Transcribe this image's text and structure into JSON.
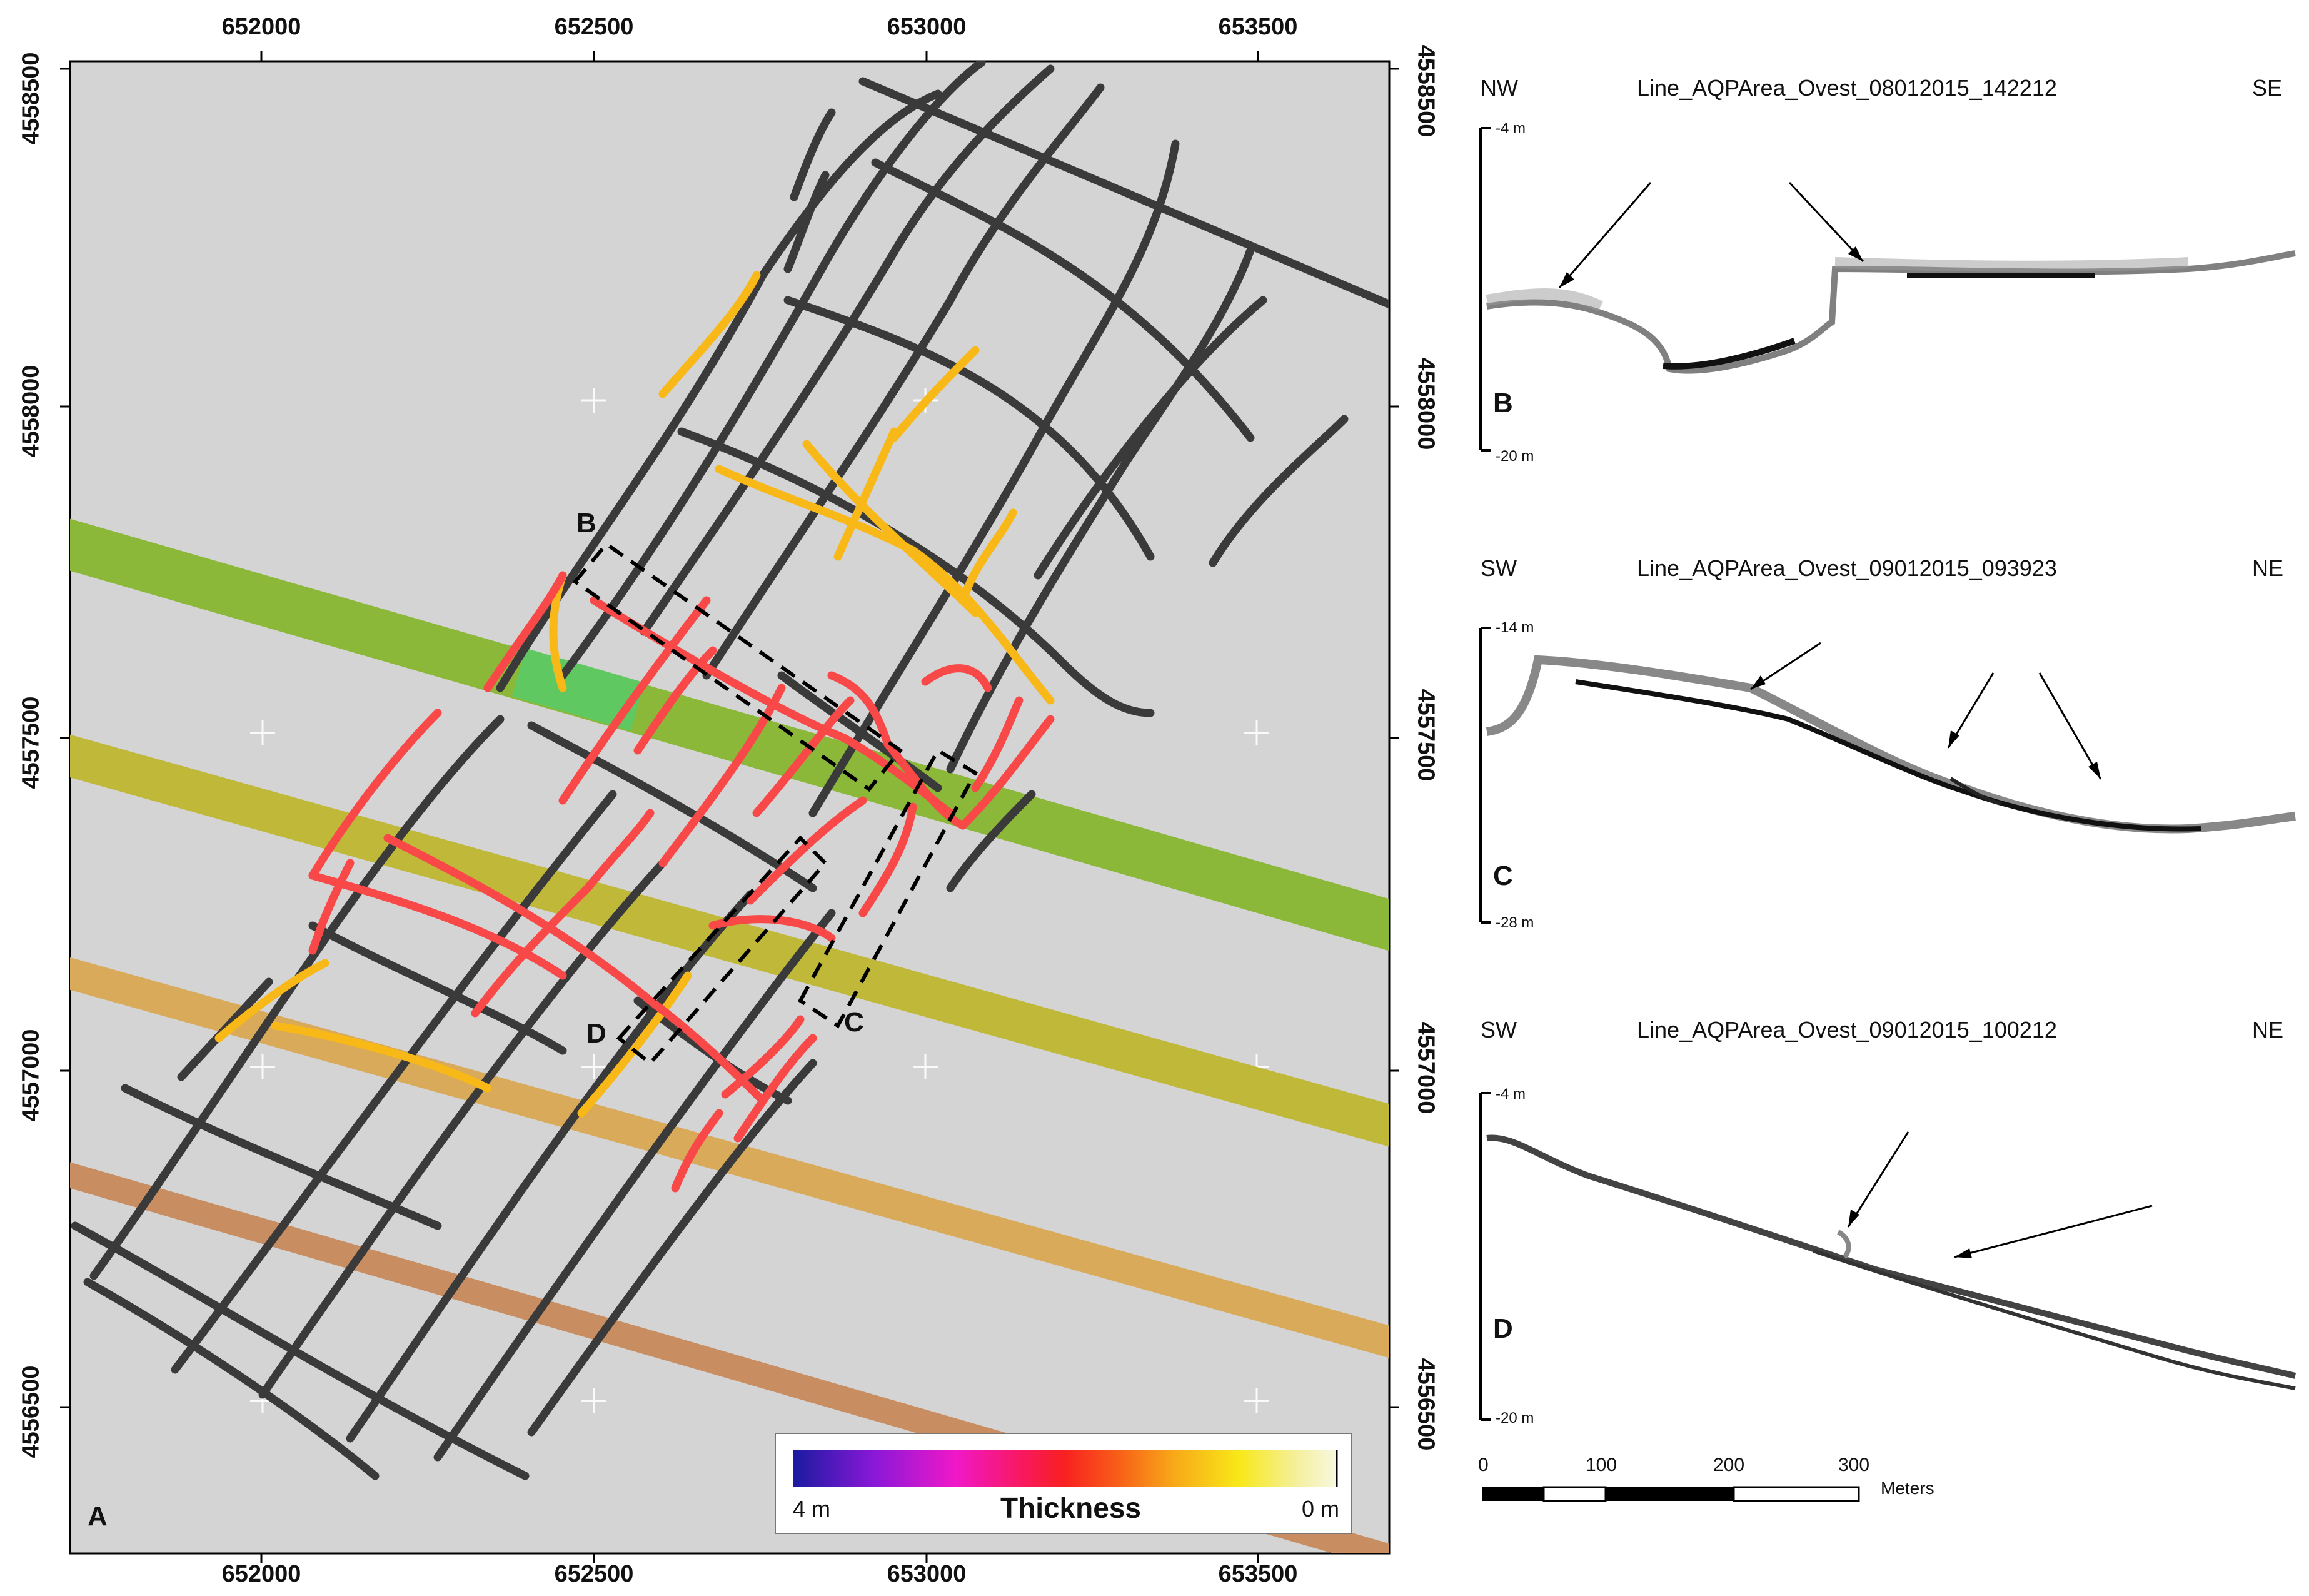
{
  "map": {
    "panel_label": "A",
    "x_ticks": [
      "652000",
      "652500",
      "653000",
      "653500"
    ],
    "y_ticks": [
      "4558500",
      "4558000",
      "4557500",
      "4557000",
      "4556500"
    ],
    "box_labels": {
      "b": "B",
      "c": "C",
      "d": "D"
    },
    "legend": {
      "title": "Thickness",
      "min_label": "4 m",
      "max_label": "0 m",
      "colors": [
        "#1a1aa0",
        "#8a18d8",
        "#f018c8",
        "#f81860",
        "#f82020",
        "#f86018",
        "#f8a818",
        "#f8e818",
        "#f4f0a0",
        "#f8f8e0"
      ]
    },
    "colors": {
      "background": "#d4d4d4",
      "track_black": "#3a3a3a",
      "track_yellow": "#f8b818",
      "track_red": "#f84848"
    }
  },
  "profiles": [
    {
      "left": "NW",
      "title": "Line_AQPArea_Ovest_08012015_142212",
      "right": "SE",
      "top_depth": "-4 m",
      "bottom_depth": "-20 m",
      "letter": "B"
    },
    {
      "left": "SW",
      "title": "Line_AQPArea_Ovest_09012015_093923",
      "right": "NE",
      "top_depth": "-14 m",
      "bottom_depth": "-28 m",
      "letter": "C"
    },
    {
      "left": "SW",
      "title": "Line_AQPArea_Ovest_09012015_100212",
      "right": "NE",
      "top_depth": "-4 m",
      "bottom_depth": "-20 m",
      "letter": "D"
    }
  ],
  "scale_bar": {
    "labels": [
      "0",
      "100",
      "200",
      "300"
    ],
    "unit": "Meters"
  }
}
